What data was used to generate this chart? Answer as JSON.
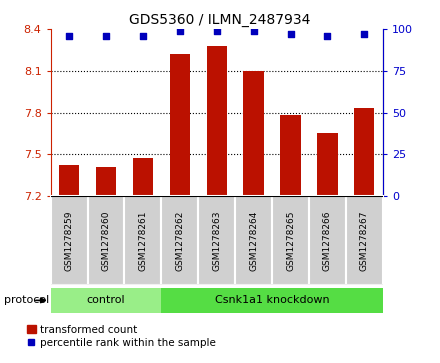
{
  "title": "GDS5360 / ILMN_2487934",
  "samples": [
    "GSM1278259",
    "GSM1278260",
    "GSM1278261",
    "GSM1278262",
    "GSM1278263",
    "GSM1278264",
    "GSM1278265",
    "GSM1278266",
    "GSM1278267"
  ],
  "bar_values": [
    7.42,
    7.41,
    7.47,
    8.22,
    8.28,
    8.1,
    7.78,
    7.65,
    7.83
  ],
  "dot_values": [
    96,
    96,
    96,
    99,
    99,
    99,
    97,
    96,
    97
  ],
  "ylim_left": [
    7.2,
    8.4
  ],
  "ylim_right": [
    0,
    100
  ],
  "yticks_left": [
    7.2,
    7.5,
    7.8,
    8.1,
    8.4
  ],
  "yticks_right": [
    0,
    25,
    50,
    75,
    100
  ],
  "bar_color": "#bb1100",
  "dot_color": "#0000bb",
  "groups": [
    {
      "label": "control",
      "start": 0,
      "end": 3,
      "color": "#99ee88"
    },
    {
      "label": "Csnk1a1 knockdown",
      "start": 3,
      "end": 9,
      "color": "#55dd44"
    }
  ],
  "protocol_label": "protocol",
  "legend_bar_label": "transformed count",
  "legend_dot_label": "percentile rank within the sample",
  "plot_bg": "#ffffff",
  "tick_label_color_left": "#cc2200",
  "tick_label_color_right": "#0000cc",
  "bar_width": 0.55,
  "bar_bottom": 7.2,
  "cell_color": "#d0d0d0",
  "cell_edge_color": "#ffffff"
}
